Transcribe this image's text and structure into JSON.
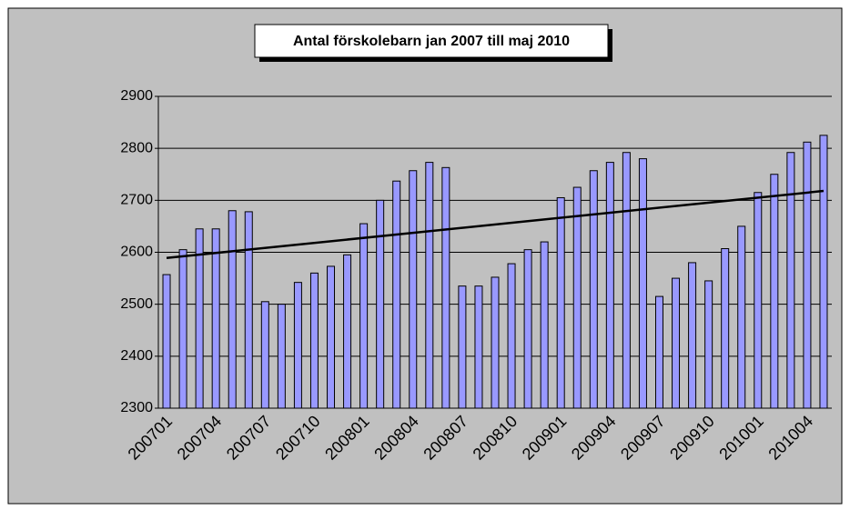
{
  "chart_data": {
    "type": "bar",
    "title": "Antal förskolebarn jan 2007 till maj 2010",
    "categories": [
      "200701",
      null,
      null,
      "200704",
      null,
      null,
      "200707",
      null,
      null,
      "200710",
      null,
      null,
      "200801",
      null,
      null,
      "200804",
      null,
      null,
      "200807",
      null,
      null,
      "200810",
      null,
      null,
      "200901",
      null,
      null,
      "200904",
      null,
      null,
      "200907",
      null,
      null,
      "200910",
      null,
      null,
      "201001",
      null,
      null,
      "201004",
      null
    ],
    "values": [
      2557,
      2605,
      2645,
      2645,
      2680,
      2678,
      2505,
      2500,
      2542,
      2560,
      2573,
      2595,
      2655,
      2700,
      2737,
      2757,
      2773,
      2763,
      2535,
      2535,
      2552,
      2578,
      2605,
      2620,
      2705,
      2725,
      2757,
      2773,
      2792,
      2780,
      2515,
      2550,
      2580,
      2545,
      2607,
      2650,
      2715,
      2750,
      2792,
      2812,
      2825
    ],
    "color": "#9999ff",
    "trendline": {
      "start": 2589,
      "end": 2718
    },
    "ylim": [
      2300,
      2900
    ],
    "yticks": [
      2300,
      2400,
      2500,
      2600,
      2700,
      2800,
      2900
    ],
    "grid": true
  }
}
